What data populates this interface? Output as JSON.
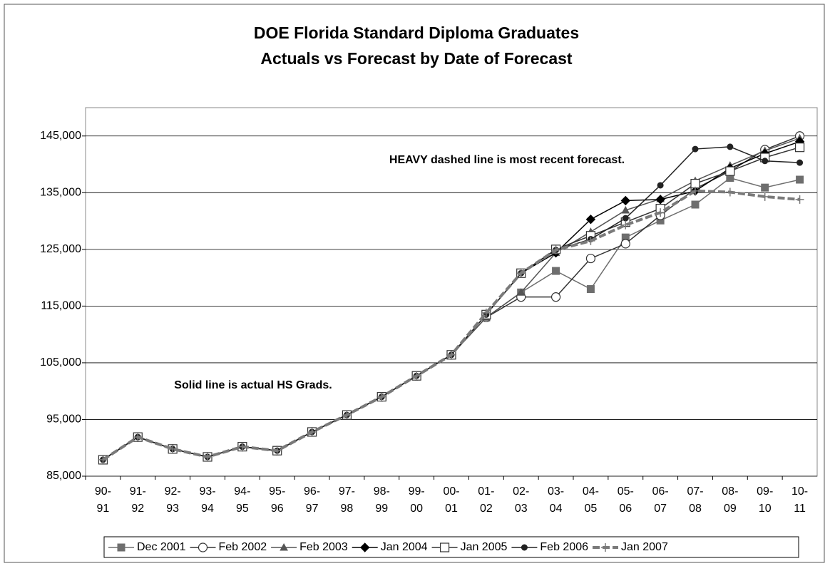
{
  "chart_data": {
    "type": "line",
    "title": [
      "DOE Florida Standard Diploma Graduates",
      "Actuals vs Forecast by Date of Forecast"
    ],
    "annotations": [
      "HEAVY dashed line is most recent forecast.",
      "Solid line is actual HS Grads."
    ],
    "categories": [
      "90-\n91",
      "91-\n92",
      "92-\n93",
      "93-\n94",
      "94-\n95",
      "95-\n96",
      "96-\n97",
      "97-\n98",
      "98-\n99",
      "99-\n00",
      "00-\n01",
      "01-\n02",
      "02-\n03",
      "03-\n04",
      "04-\n05",
      "05-\n06",
      "06-\n07",
      "07-\n08",
      "08-\n09",
      "09-\n10",
      "10-\n11"
    ],
    "ylim": [
      85000,
      150000
    ],
    "yticks": [
      {
        "value": 85000,
        "label": "85,000"
      },
      {
        "value": 95000,
        "label": "95,000"
      },
      {
        "value": 105000,
        "label": "105,000"
      },
      {
        "value": 115000,
        "label": "115,000"
      },
      {
        "value": 125000,
        "label": "125,000"
      },
      {
        "value": 135000,
        "label": "135,000"
      },
      {
        "value": 145000,
        "label": "145,000"
      }
    ],
    "grid": true,
    "legend": "bottom",
    "series": [
      {
        "name": "Dec 2001",
        "color": "#6e6e6e",
        "marker": "square-filled",
        "values": [
          87900,
          91900,
          89800,
          88400,
          90200,
          89500,
          92800,
          95800,
          99000,
          102700,
          106400,
          113000,
          117400,
          121200,
          118000,
          127100,
          130100,
          132900,
          137600,
          135900,
          137300
        ]
      },
      {
        "name": "Feb 2002",
        "color": "#333333",
        "marker": "circle-open",
        "values": [
          87900,
          91900,
          89800,
          88400,
          90200,
          89500,
          92800,
          95800,
          99000,
          102700,
          106400,
          113000,
          116600,
          116600,
          123400,
          126000,
          131000,
          135700,
          138800,
          142600,
          145000
        ]
      },
      {
        "name": "Feb 2003",
        "color": "#555555",
        "marker": "triangle",
        "values": [
          87900,
          91900,
          89800,
          88400,
          90200,
          89500,
          92800,
          95800,
          99000,
          102700,
          106400,
          113000,
          117400,
          124400,
          128100,
          131900,
          133900,
          137100,
          139800,
          142400,
          144600
        ]
      },
      {
        "name": "Jan 2004",
        "color": "#000000",
        "marker": "diamond",
        "values": [
          87900,
          91900,
          89800,
          88400,
          90200,
          89500,
          92800,
          95800,
          99000,
          102700,
          106400,
          113500,
          120800,
          124400,
          130300,
          133600,
          133800,
          135300,
          139300,
          141900,
          144000
        ]
      },
      {
        "name": "Jan 2005",
        "color": "#333333",
        "marker": "square-open",
        "values": [
          87900,
          91900,
          89800,
          88400,
          90200,
          89500,
          92800,
          95800,
          99000,
          102700,
          106400,
          113500,
          120800,
          125000,
          127400,
          129800,
          132200,
          136600,
          138800,
          141200,
          143000
        ]
      },
      {
        "name": "Feb 2006",
        "color": "#222222",
        "marker": "circle-filled",
        "values": [
          87900,
          91900,
          89800,
          88400,
          90200,
          89500,
          92800,
          95800,
          99000,
          102700,
          106400,
          113500,
          120800,
          124900,
          126800,
          130500,
          136300,
          142700,
          143100,
          140600,
          140300
        ]
      },
      {
        "name": "Jan 2007",
        "color": "#7a7a7a",
        "marker": "plus",
        "dashed": true,
        "values": [
          87900,
          91900,
          89800,
          88400,
          90200,
          89500,
          92800,
          95800,
          99000,
          102700,
          106400,
          113800,
          120800,
          124900,
          126500,
          129300,
          131500,
          135300,
          135100,
          134300,
          133800
        ]
      }
    ]
  }
}
